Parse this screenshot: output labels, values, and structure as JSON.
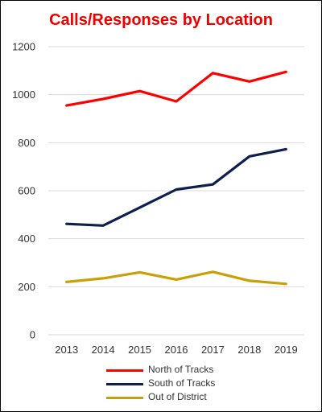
{
  "chart_data": {
    "type": "line",
    "title": "Calls/Responses by Location",
    "x": [
      "2013",
      "2014",
      "2015",
      "2016",
      "2017",
      "2018",
      "2019"
    ],
    "ylim": [
      0,
      1200
    ],
    "yticks": [
      "0",
      "200",
      "400",
      "600",
      "800",
      "1000",
      "1200"
    ],
    "grid": true,
    "legend_position": "bottom",
    "series": [
      {
        "name": "North of Tracks",
        "color": "#ff0000",
        "values": [
          955,
          982,
          1015,
          972,
          1090,
          1055,
          1095
        ]
      },
      {
        "name": "South of Tracks",
        "color": "#0d1f4d",
        "values": [
          462,
          455,
          530,
          605,
          626,
          743,
          773
        ]
      },
      {
        "name": "Out of District",
        "color": "#c9a008",
        "values": [
          220,
          235,
          260,
          230,
          262,
          225,
          212
        ]
      }
    ]
  }
}
